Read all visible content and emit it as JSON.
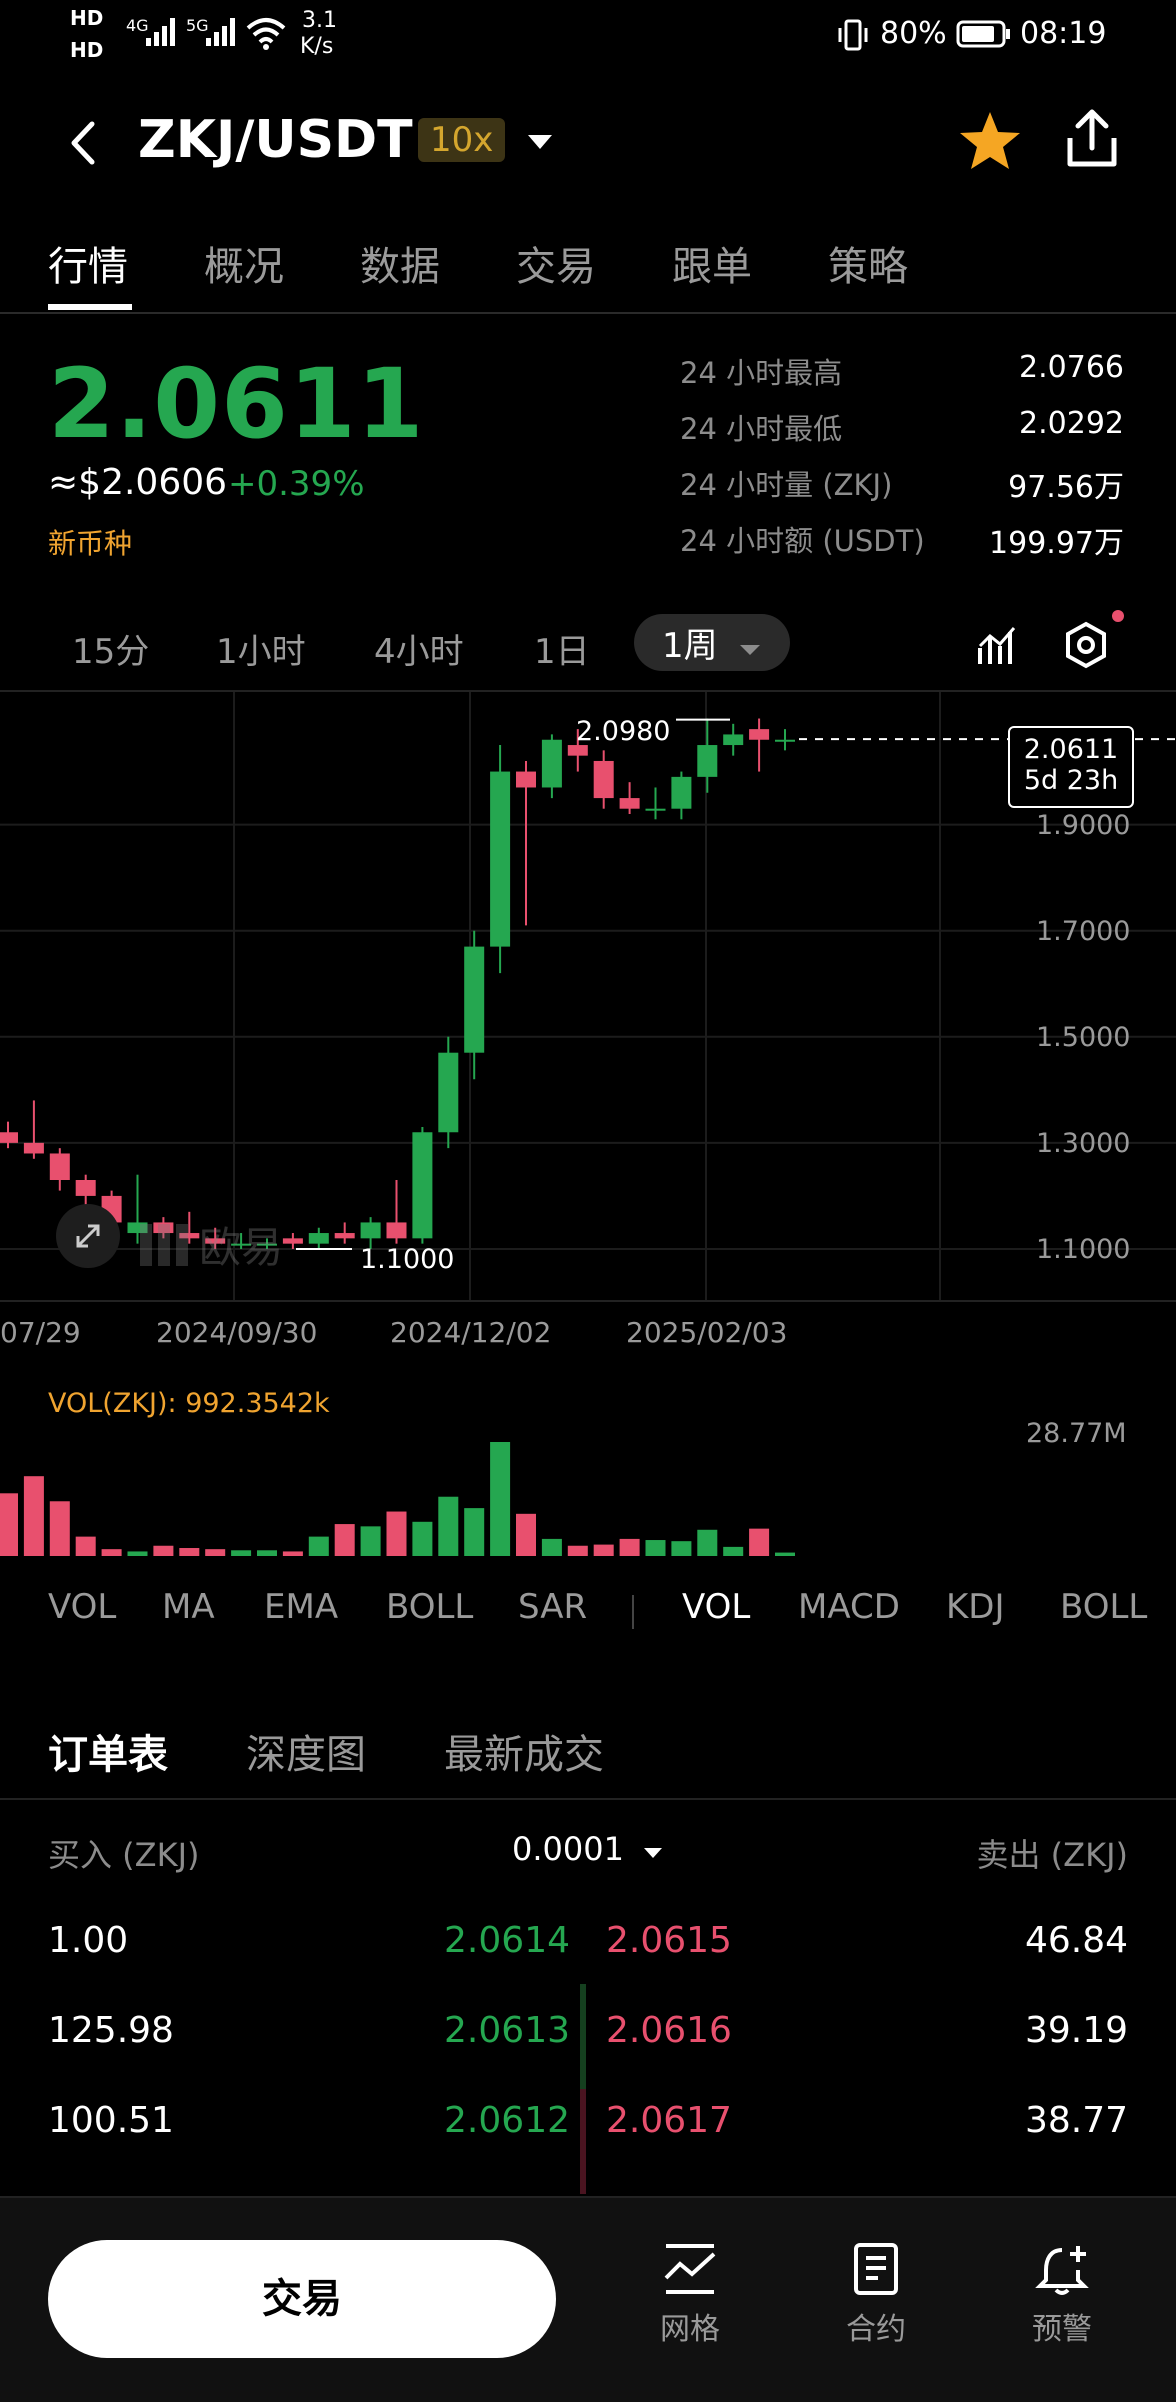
{
  "status": {
    "hd1": "HD",
    "hd2": "HD",
    "net1": "4G",
    "net2": "5G",
    "speed_value": "3.1",
    "speed_unit": "K/s",
    "battery": "80%",
    "time": "08:19"
  },
  "header": {
    "pair": "ZKJ/USDT",
    "leverage": "10x"
  },
  "tabs": [
    "行情",
    "概况",
    "数据",
    "交易",
    "跟单",
    "策略"
  ],
  "ticker": {
    "last_price": "2.0611",
    "usd_price": "≈$2.0606",
    "change": "+0.39%",
    "tag": "新币种",
    "stats": [
      {
        "label": "24 小时最高",
        "value": "2.0766"
      },
      {
        "label": "24 小时最低",
        "value": "2.0292"
      },
      {
        "label": "24 小时量 (ZKJ)",
        "value": "97.56万"
      },
      {
        "label": "24 小时额 (USDT)",
        "value": "199.97万"
      }
    ]
  },
  "intervals": [
    "15分",
    "1小时",
    "4小时",
    "1日",
    "1周"
  ],
  "colors": {
    "up": "#25a750",
    "down": "#e8506e",
    "accent": "#f0a430"
  },
  "chart": {
    "y_ticks": [
      "1.9000",
      "1.7000",
      "1.5000",
      "1.3000",
      "1.1000"
    ],
    "high_label": "2.0980",
    "low_label": "1.1000",
    "last_label": "2.0611",
    "countdown": "5d 23h",
    "watermark": "欧易",
    "date_labels": [
      "07/29",
      "2024/09/30",
      "2024/12/02",
      "2025/02/03"
    ]
  },
  "volume": {
    "label": "VOL(ZKJ): 992.3542k",
    "max_label": "28.77M"
  },
  "chart_data": {
    "type": "candlestick",
    "y_range": [
      1.0,
      2.15
    ],
    "series_ohlc": [
      {
        "o": 1.32,
        "h": 1.34,
        "l": 1.29,
        "c": 1.3
      },
      {
        "o": 1.3,
        "h": 1.38,
        "l": 1.27,
        "c": 1.28
      },
      {
        "o": 1.28,
        "h": 1.29,
        "l": 1.21,
        "c": 1.23
      },
      {
        "o": 1.23,
        "h": 1.24,
        "l": 1.18,
        "c": 1.2
      },
      {
        "o": 1.2,
        "h": 1.21,
        "l": 1.12,
        "c": 1.15
      },
      {
        "o": 1.13,
        "h": 1.24,
        "l": 1.11,
        "c": 1.15
      },
      {
        "o": 1.15,
        "h": 1.16,
        "l": 1.12,
        "c": 1.13
      },
      {
        "o": 1.13,
        "h": 1.17,
        "l": 1.11,
        "c": 1.12
      },
      {
        "o": 1.12,
        "h": 1.14,
        "l": 1.1,
        "c": 1.11
      },
      {
        "o": 1.11,
        "h": 1.13,
        "l": 1.1,
        "c": 1.11
      },
      {
        "o": 1.11,
        "h": 1.12,
        "l": 1.1,
        "c": 1.11
      },
      {
        "o": 1.12,
        "h": 1.13,
        "l": 1.1,
        "c": 1.11
      },
      {
        "o": 1.11,
        "h": 1.14,
        "l": 1.1,
        "c": 1.13
      },
      {
        "o": 1.13,
        "h": 1.15,
        "l": 1.11,
        "c": 1.12
      },
      {
        "o": 1.12,
        "h": 1.16,
        "l": 1.1,
        "c": 1.15
      },
      {
        "o": 1.15,
        "h": 1.23,
        "l": 1.11,
        "c": 1.12
      },
      {
        "o": 1.12,
        "h": 1.33,
        "l": 1.11,
        "c": 1.32
      },
      {
        "o": 1.32,
        "h": 1.5,
        "l": 1.29,
        "c": 1.47
      },
      {
        "o": 1.47,
        "h": 1.7,
        "l": 1.42,
        "c": 1.67
      },
      {
        "o": 1.67,
        "h": 2.05,
        "l": 1.62,
        "c": 2.0
      },
      {
        "o": 2.0,
        "h": 2.02,
        "l": 1.71,
        "c": 1.97
      },
      {
        "o": 1.97,
        "h": 2.07,
        "l": 1.95,
        "c": 2.06
      },
      {
        "o": 2.05,
        "h": 2.08,
        "l": 2.0,
        "c": 2.03
      },
      {
        "o": 2.02,
        "h": 2.04,
        "l": 1.93,
        "c": 1.95
      },
      {
        "o": 1.95,
        "h": 1.98,
        "l": 1.92,
        "c": 1.93
      },
      {
        "o": 1.93,
        "h": 1.97,
        "l": 1.91,
        "c": 1.93
      },
      {
        "o": 1.93,
        "h": 2.0,
        "l": 1.91,
        "c": 1.99
      },
      {
        "o": 1.99,
        "h": 2.1,
        "l": 1.96,
        "c": 2.05
      },
      {
        "o": 2.05,
        "h": 2.09,
        "l": 2.03,
        "c": 2.07
      },
      {
        "o": 2.08,
        "h": 2.1,
        "l": 2.0,
        "c": 2.06
      },
      {
        "o": 2.06,
        "h": 2.08,
        "l": 2.04,
        "c": 2.06
      }
    ],
    "volume_relative": [
      0.55,
      0.7,
      0.48,
      0.17,
      0.06,
      0.04,
      0.09,
      0.07,
      0.06,
      0.05,
      0.05,
      0.04,
      0.17,
      0.28,
      0.26,
      0.39,
      0.3,
      0.52,
      0.42,
      1.0,
      0.37,
      0.15,
      0.09,
      0.1,
      0.15,
      0.14,
      0.13,
      0.23,
      0.08,
      0.24,
      0.03
    ]
  },
  "indicators_main": [
    "VOL",
    "MA",
    "EMA",
    "BOLL",
    "SAR"
  ],
  "indicators_sub": [
    "VOL",
    "MACD",
    "KDJ",
    "BOLL"
  ],
  "orderbook": {
    "tabs": [
      "订单表",
      "深度图",
      "最新成交"
    ],
    "bid_header": "买入 (ZKJ)",
    "precision": "0.0001",
    "ask_header": "卖出 (ZKJ)",
    "rows": [
      {
        "bid_qty": "1.00",
        "bid_price": "2.0614",
        "ask_price": "2.0615",
        "ask_qty": "46.84"
      },
      {
        "bid_qty": "125.98",
        "bid_price": "2.0613",
        "ask_price": "2.0616",
        "ask_qty": "39.19"
      },
      {
        "bid_qty": "100.51",
        "bid_price": "2.0612",
        "ask_price": "2.0617",
        "ask_qty": "38.77"
      }
    ]
  },
  "bottom": {
    "trade": "交易",
    "grid": "网格",
    "contract": "合约",
    "alert": "预警"
  }
}
